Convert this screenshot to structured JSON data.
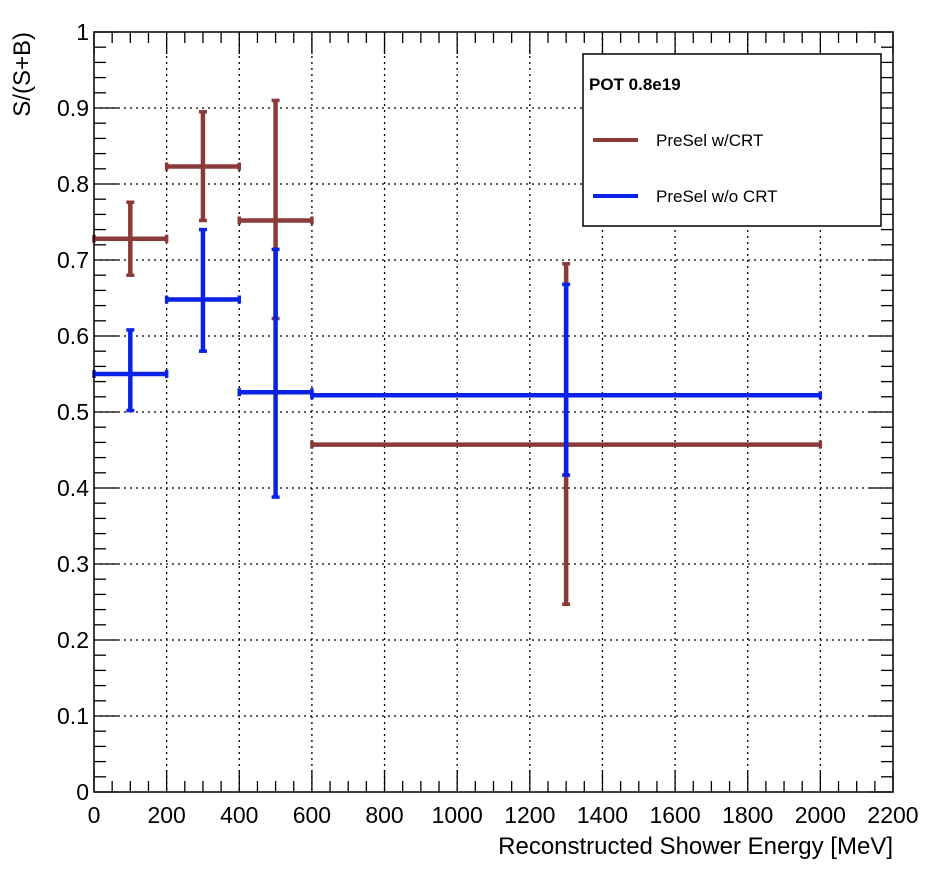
{
  "chart_data": {
    "type": "scatter",
    "xlabel": "Reconstructed Shower Energy [MeV]",
    "ylabel": "S/(S+B)",
    "xlim": [
      0,
      2200
    ],
    "ylim": [
      0,
      1
    ],
    "x_ticks": [
      0,
      200,
      400,
      600,
      800,
      1000,
      1200,
      1400,
      1600,
      1800,
      2000,
      2200
    ],
    "y_ticks": [
      0,
      0.1,
      0.2,
      0.3,
      0.4,
      0.5,
      0.6,
      0.7,
      0.8,
      0.9,
      1
    ],
    "grid": true,
    "legend_position": "top-right",
    "legend_title": "POT 0.8e19",
    "series": [
      {
        "name": "PreSel w/CRT",
        "color": "#8b3a3a",
        "points": [
          {
            "x": 100,
            "xlo": 0,
            "xhi": 200,
            "y": 0.728,
            "ylo": 0.68,
            "yhi": 0.776
          },
          {
            "x": 300,
            "xlo": 200,
            "xhi": 400,
            "y": 0.823,
            "ylo": 0.752,
            "yhi": 0.895
          },
          {
            "x": 500,
            "xlo": 400,
            "xhi": 600,
            "y": 0.752,
            "ylo": 0.623,
            "yhi": 0.91
          },
          {
            "x": 1300,
            "xlo": 600,
            "xhi": 2000,
            "y": 0.457,
            "ylo": 0.247,
            "yhi": 0.695
          }
        ]
      },
      {
        "name": "PreSel w/o CRT",
        "color": "#0a22e6",
        "points": [
          {
            "x": 100,
            "xlo": 0,
            "xhi": 200,
            "y": 0.55,
            "ylo": 0.502,
            "yhi": 0.608
          },
          {
            "x": 300,
            "xlo": 200,
            "xhi": 400,
            "y": 0.648,
            "ylo": 0.58,
            "yhi": 0.74
          },
          {
            "x": 500,
            "xlo": 400,
            "xhi": 600,
            "y": 0.526,
            "ylo": 0.388,
            "yhi": 0.714
          },
          {
            "x": 1300,
            "xlo": 600,
            "xhi": 2000,
            "y": 0.522,
            "ylo": 0.417,
            "yhi": 0.668
          }
        ]
      }
    ]
  }
}
